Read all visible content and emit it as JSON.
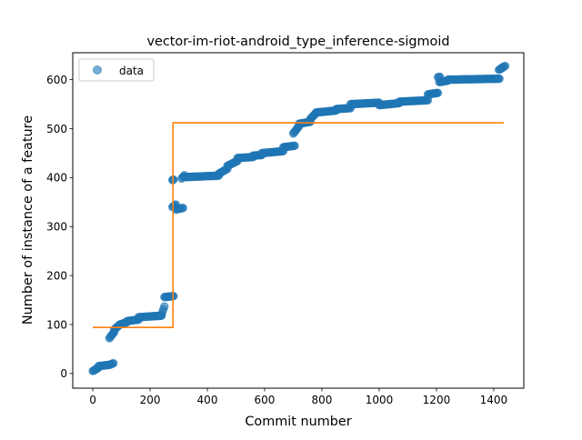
{
  "chart_data": {
    "type": "scatter",
    "title": "vector-im-riot-android_type_inference-sigmoid",
    "xlabel": "Commit number",
    "ylabel": "Number of instance of a feature",
    "xlim": [
      -70,
      1505
    ],
    "ylim": [
      -30,
      655
    ],
    "x_ticks": [
      0,
      200,
      400,
      600,
      800,
      1000,
      1200,
      1400
    ],
    "y_ticks": [
      0,
      100,
      200,
      300,
      400,
      500,
      600
    ],
    "grid": false,
    "legend": {
      "position": "top-left",
      "entries": [
        "data"
      ]
    },
    "colors": {
      "data": "#1f77b4",
      "fit": "#ff7f0e"
    },
    "series": [
      {
        "name": "data",
        "kind": "scatter",
        "segments": [
          {
            "x": [
              0,
              20
            ],
            "y": [
              5,
              12
            ]
          },
          {
            "x": [
              20,
              60
            ],
            "y": [
              15,
              18
            ]
          },
          {
            "x": [
              60,
              72
            ],
            "y": [
              18,
              21
            ]
          },
          {
            "x": [
              58,
              75
            ],
            "y": [
              72,
              85
            ]
          },
          {
            "x": [
              75,
              95
            ],
            "y": [
              90,
              100
            ]
          },
          {
            "x": [
              95,
              120
            ],
            "y": [
              100,
              105
            ]
          },
          {
            "x": [
              120,
              160
            ],
            "y": [
              107,
              110
            ]
          },
          {
            "x": [
              160,
              240
            ],
            "y": [
              115,
              118
            ]
          },
          {
            "x": [
              240,
              250
            ],
            "y": [
              120,
              137
            ]
          },
          {
            "x": [
              250,
              282
            ],
            "y": [
              156,
              158
            ]
          },
          {
            "x": [
              278,
              282
            ],
            "y": [
              395,
              396
            ]
          },
          {
            "x": [
              278,
              290
            ],
            "y": [
              340,
              345
            ]
          },
          {
            "x": [
              290,
              315
            ],
            "y": [
              335,
              338
            ]
          },
          {
            "x": [
              310,
              320
            ],
            "y": [
              398,
              405
            ]
          },
          {
            "x": [
              320,
              440
            ],
            "y": [
              401,
              404
            ]
          },
          {
            "x": [
              440,
              470
            ],
            "y": [
              408,
              418
            ]
          },
          {
            "x": [
              470,
              505
            ],
            "y": [
              424,
              434
            ]
          },
          {
            "x": [
              505,
              560
            ],
            "y": [
              440,
              442
            ]
          },
          {
            "x": [
              560,
              590
            ],
            "y": [
              445,
              446
            ]
          },
          {
            "x": [
              590,
              665
            ],
            "y": [
              450,
              454
            ]
          },
          {
            "x": [
              665,
              705
            ],
            "y": [
              462,
              465
            ]
          },
          {
            "x": [
              700,
              720
            ],
            "y": [
              490,
              505
            ]
          },
          {
            "x": [
              720,
              760
            ],
            "y": [
              510,
              514
            ]
          },
          {
            "x": [
              760,
              780
            ],
            "y": [
              520,
              532
            ]
          },
          {
            "x": [
              780,
              850
            ],
            "y": [
              533,
              537
            ]
          },
          {
            "x": [
              850,
              900
            ],
            "y": [
              540,
              542
            ]
          },
          {
            "x": [
              900,
              1000
            ],
            "y": [
              550,
              553
            ]
          },
          {
            "x": [
              1000,
              1070
            ],
            "y": [
              548,
              552
            ]
          },
          {
            "x": [
              1070,
              1170
            ],
            "y": [
              555,
              558
            ]
          },
          {
            "x": [
              1170,
              1205
            ],
            "y": [
              570,
              573
            ]
          },
          {
            "x": [
              1205,
              1212
            ],
            "y": [
              605,
              606
            ]
          },
          {
            "x": [
              1210,
              1240
            ],
            "y": [
              595,
              598
            ]
          },
          {
            "x": [
              1240,
              1420
            ],
            "y": [
              600,
              602
            ]
          },
          {
            "x": [
              1418,
              1430
            ],
            "y": [
              620,
              624
            ]
          },
          {
            "x": [
              1430,
              1440
            ],
            "y": [
              625,
              628
            ]
          }
        ]
      },
      {
        "name": "",
        "kind": "step",
        "x": [
          0,
          280,
          280,
          1435
        ],
        "y": [
          94,
          94,
          512,
          512
        ]
      }
    ]
  }
}
